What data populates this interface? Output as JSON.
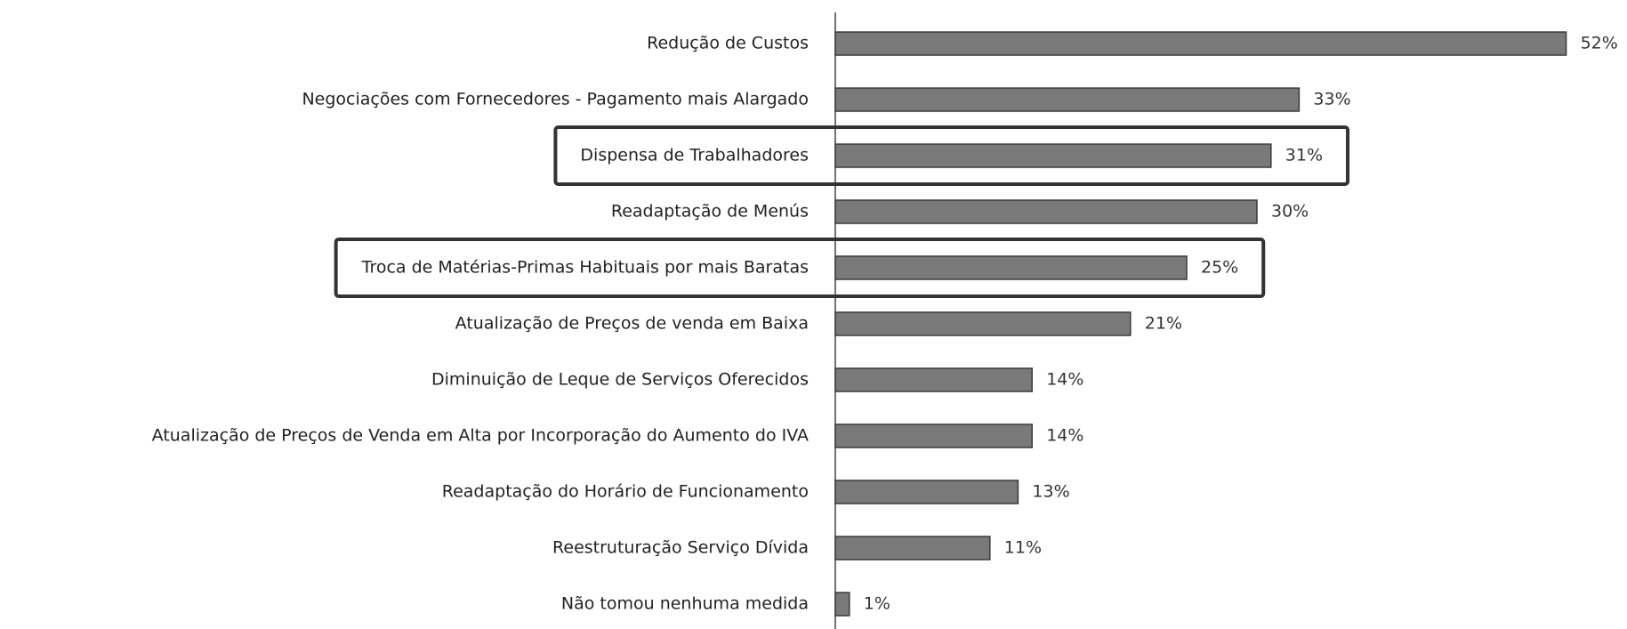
{
  "chart_data": {
    "type": "hbar",
    "categories": [
      "Redução de Custos",
      "Negociações com Fornecedores - Pagamento mais Alargado",
      "Dispensa de Trabalhadores",
      "Readaptação de Menús",
      "Troca de Matérias-Primas Habituais por mais Baratas",
      "Atualização de Preços de venda em Baixa",
      "Diminuição de Leque de Serviços Oferecidos",
      "Atualização de Preços de Venda em Alta por Incorporação do Aumento do IVA",
      "Readaptação do Horário de Funcionamento",
      "Reestruturação Serviço Dívida",
      "Não tomou nenhuma medida"
    ],
    "values": [
      52,
      33,
      31,
      30,
      25,
      21,
      14,
      14,
      13,
      11,
      1
    ],
    "value_labels": [
      "52%",
      "33%",
      "31%",
      "30%",
      "25%",
      "21%",
      "14%",
      "14%",
      "13%",
      "11%",
      "1%"
    ],
    "color": "#7a7a7a",
    "highlight": [
      2,
      4
    ]
  }
}
